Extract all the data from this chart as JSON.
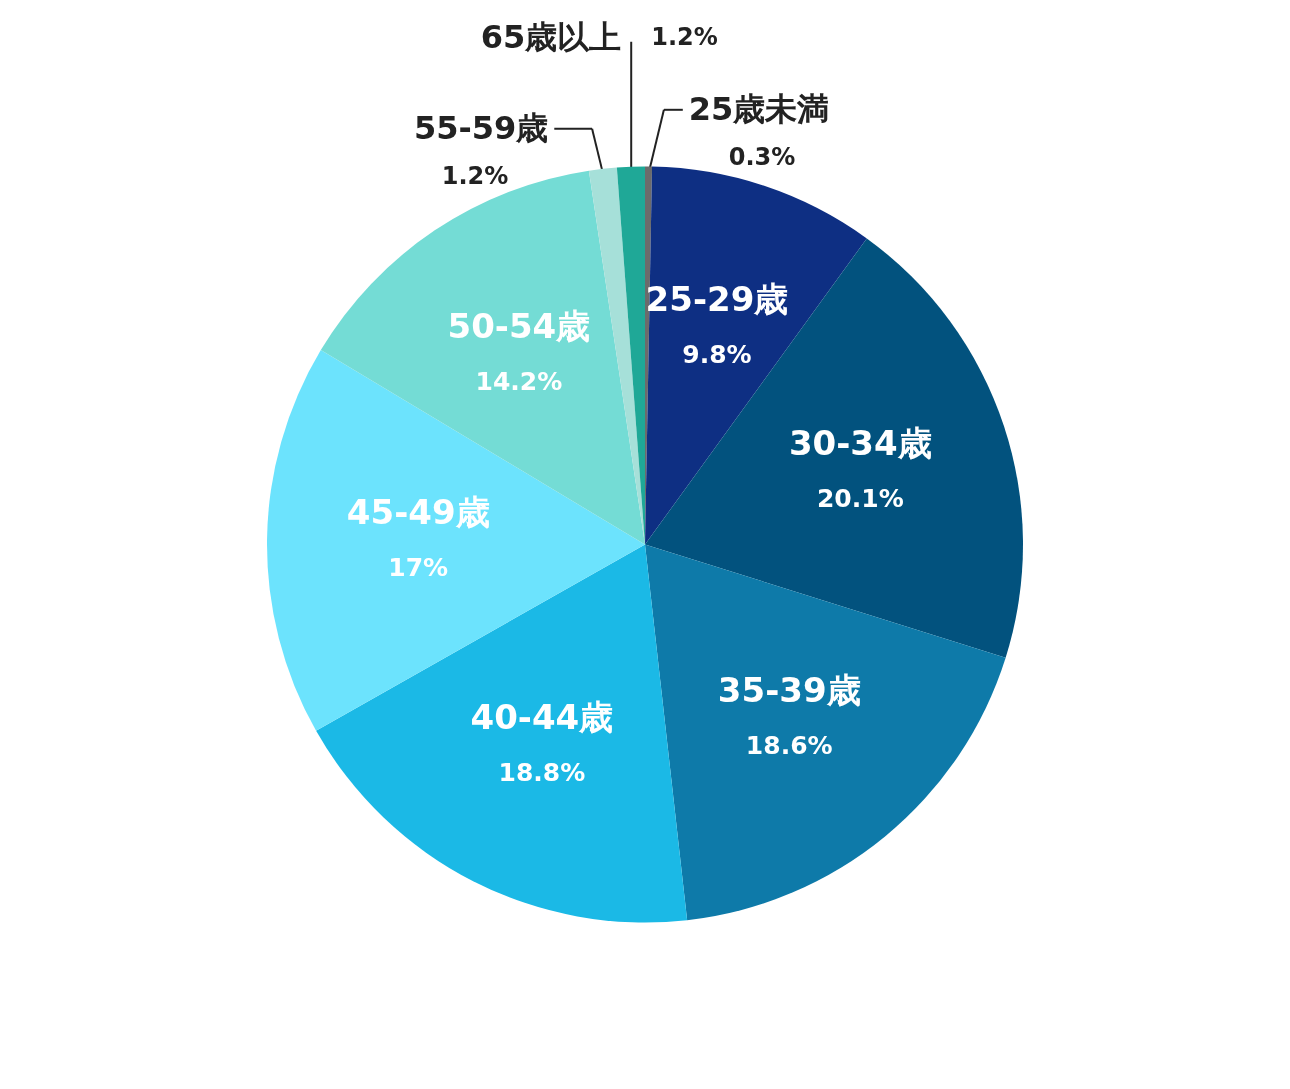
{
  "chart_data": {
    "type": "pie",
    "categories": [
      "25歳未満",
      "25-29歳",
      "30-34歳",
      "35-39歳",
      "40-44歳",
      "45-49歳",
      "50-54歳",
      "55-59歳",
      "65歳以上"
    ],
    "values": [
      0.3,
      9.8,
      20.1,
      18.6,
      18.8,
      17,
      14.2,
      1.2,
      1.2
    ],
    "value_labels": [
      "0.3%",
      "9.8%",
      "20.1%",
      "18.6%",
      "18.8%",
      "17%",
      "14.2%",
      "1.2%",
      "1.2%"
    ],
    "colors": [
      "#6b6b6b",
      "#0e2f83",
      "#02527e",
      "#0e7aa9",
      "#1bb9e6",
      "#6ce3fd",
      "#74dcd5",
      "#a6e0d9",
      "#1fa897"
    ]
  }
}
